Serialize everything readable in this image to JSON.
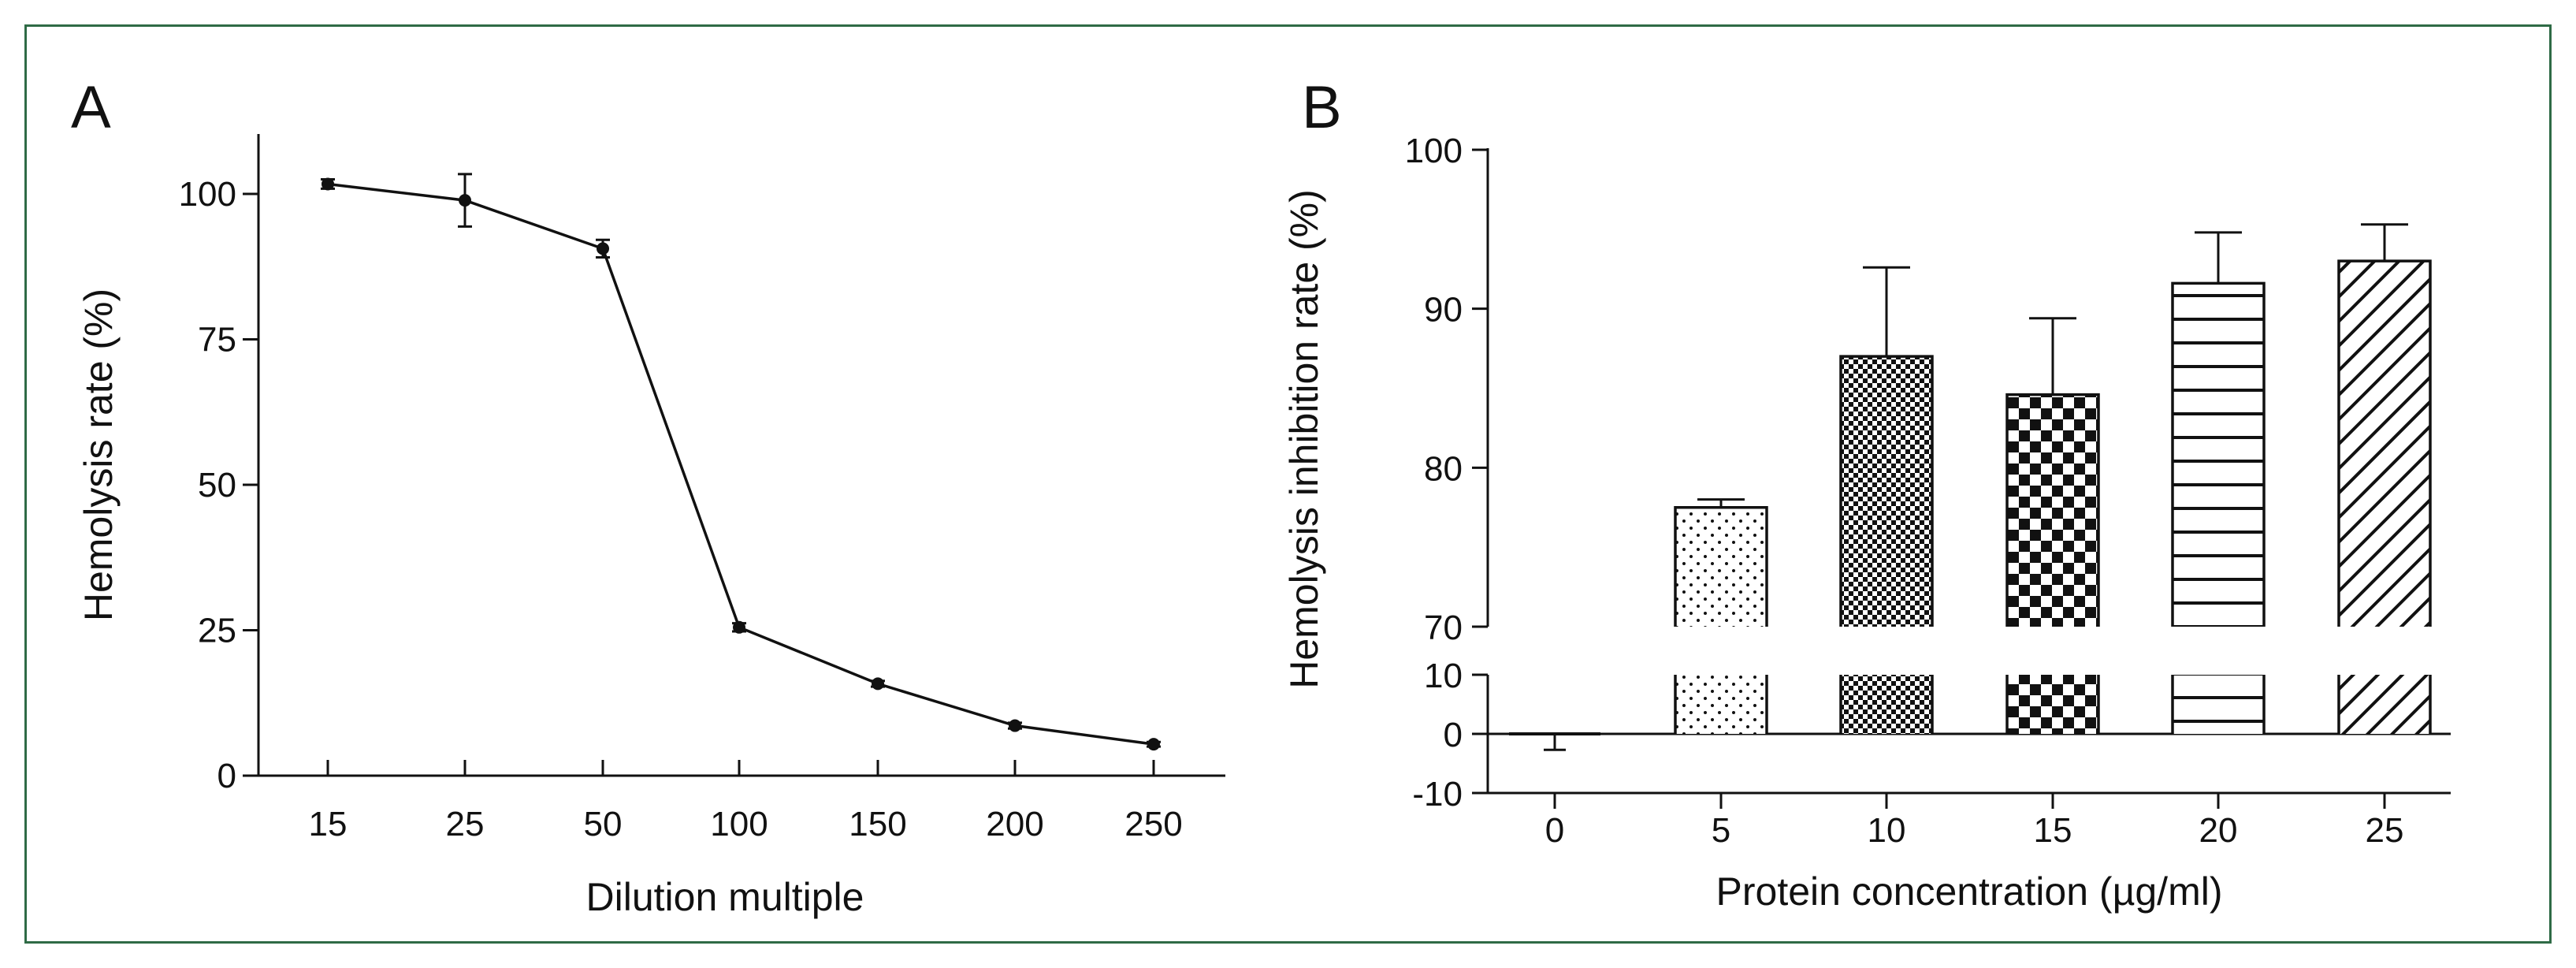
{
  "chart_data": [
    {
      "panel": "A",
      "type": "line",
      "xlabel": "Dilution multiple",
      "ylabel": "Hemolysis rate (%)",
      "categories": [
        "15",
        "25",
        "50",
        "100",
        "150",
        "200",
        "250"
      ],
      "values": [
        101.7,
        98.9,
        90.6,
        25.5,
        15.8,
        8.6,
        5.4
      ],
      "errors": [
        0.8,
        4.5,
        1.5,
        0.7,
        0.5,
        0.5,
        0.4
      ],
      "ylim": [
        0,
        110
      ],
      "yticks": [
        "0",
        "25",
        "50",
        "75",
        "100"
      ],
      "color": "#111111"
    },
    {
      "panel": "B",
      "type": "bar",
      "xlabel": "Protein concentration (µg/ml)",
      "ylabel": "Hemolysis inhibition rate (%)",
      "categories": [
        "0",
        "5",
        "10",
        "15",
        "20",
        "25"
      ],
      "values": [
        0.0,
        77.5,
        87.0,
        84.6,
        91.6,
        93.0
      ],
      "errors": [
        2.7,
        0.5,
        5.6,
        4.8,
        3.2,
        2.3
      ],
      "patterns": [
        "none",
        "dots",
        "fine-checker",
        "checker",
        "horizontal-lines",
        "diagonal-lines"
      ],
      "y_break": {
        "lower": [
          -10,
          10
        ],
        "upper": [
          70,
          100
        ]
      },
      "yticks_lower": [
        "-10",
        "0",
        "10"
      ],
      "yticks_upper": [
        "70",
        "80",
        "90",
        "100"
      ],
      "color": "#111111"
    }
  ]
}
